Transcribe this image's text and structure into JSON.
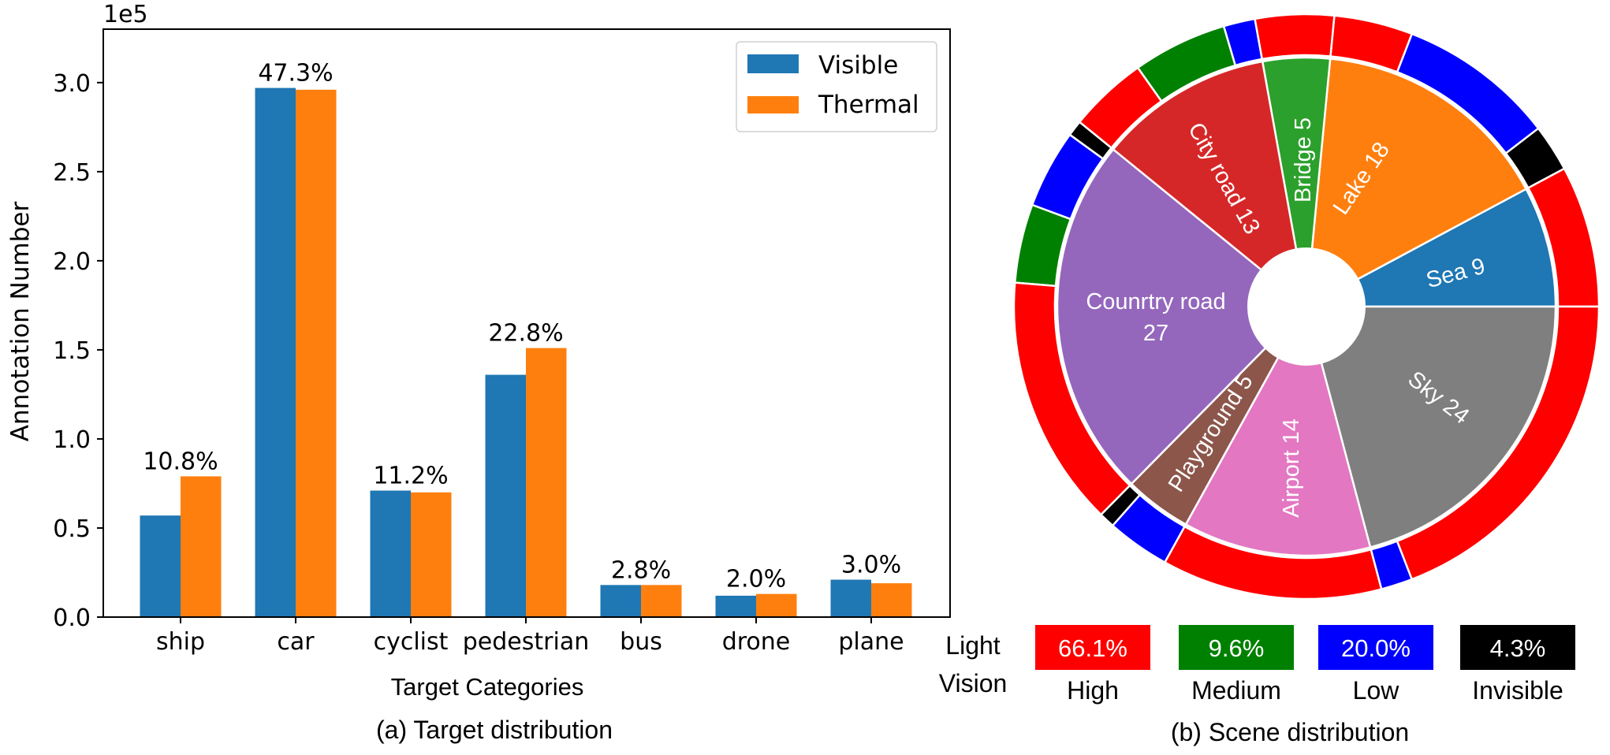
{
  "chart_data": [
    {
      "type": "bar",
      "title": "",
      "caption": "(a) Target distribution",
      "xlabel": "Target Categories",
      "ylabel": "Annotation Number",
      "y_scale_label": "1e5",
      "ylim": [
        0,
        3.3
      ],
      "yticks": [
        0.0,
        0.5,
        1.0,
        1.5,
        2.0,
        2.5,
        3.0
      ],
      "ytick_labels": [
        "0.0",
        "0.5",
        "1.0",
        "1.5",
        "2.0",
        "2.5",
        "3.0"
      ],
      "categories": [
        "ship",
        "car",
        "cyclist",
        "pedestrian",
        "bus",
        "drone",
        "plane"
      ],
      "series": [
        {
          "name": "Visible",
          "color": "#1f77b4",
          "values": [
            0.57,
            2.97,
            0.71,
            1.36,
            0.18,
            0.12,
            0.21
          ]
        },
        {
          "name": "Thermal",
          "color": "#ff7f0e",
          "values": [
            0.79,
            2.96,
            0.7,
            1.51,
            0.18,
            0.13,
            0.19
          ]
        }
      ],
      "bar_labels": [
        "10.8%",
        "47.3%",
        "11.2%",
        "22.8%",
        "2.8%",
        "2.0%",
        "3.0%"
      ],
      "legend": {
        "placement": "top-right",
        "entries": [
          "Visible",
          "Thermal"
        ]
      },
      "grid": false
    },
    {
      "type": "pie",
      "subtype": "nested-donut",
      "caption": "(b) Scene distribution",
      "start_angle_deg": 0,
      "direction": "counterclockwise",
      "inner": [
        {
          "label": "Sea 9",
          "value": 9,
          "color": "#1f77b4"
        },
        {
          "label": "Lake 18",
          "value": 18,
          "color": "#ff7f0e"
        },
        {
          "label": "Bridge 5",
          "value": 5,
          "color": "#2ca02c"
        },
        {
          "label": "City road 13",
          "value": 13,
          "color": "#d62728"
        },
        {
          "label": "Counrtry road 27",
          "label_lines": [
            "Counrtry road",
            "27"
          ],
          "value": 27,
          "color": "#9467bd"
        },
        {
          "label": "Playground 5",
          "value": 5,
          "color": "#8c564b"
        },
        {
          "label": "Airport 14",
          "value": 14,
          "color": "#e377c2"
        },
        {
          "label": "Sky 24",
          "value": 24,
          "color": "#7f7f7f"
        }
      ],
      "outer": [
        {
          "scene": "Sea 9",
          "segments": [
            {
              "level": "High",
              "value": 9
            }
          ]
        },
        {
          "scene": "Lake 18",
          "segments": [
            {
              "level": "Invisible",
              "value": 3
            },
            {
              "level": "Low",
              "value": 10
            },
            {
              "level": "High",
              "value": 5
            }
          ]
        },
        {
          "scene": "Bridge 5",
          "segments": [
            {
              "level": "High",
              "value": 5
            }
          ]
        },
        {
          "scene": "City road 13",
          "segments": [
            {
              "level": "Low",
              "value": 2
            },
            {
              "level": "Medium",
              "value": 6
            },
            {
              "level": "High",
              "value": 5
            }
          ]
        },
        {
          "scene": "Counrtry road 27",
          "segments": [
            {
              "level": "Invisible",
              "value": 1
            },
            {
              "level": "Low",
              "value": 5
            },
            {
              "level": "Medium",
              "value": 5
            },
            {
              "level": "High",
              "value": 16
            }
          ]
        },
        {
          "scene": "Playground 5",
          "segments": [
            {
              "level": "Invisible",
              "value": 1
            },
            {
              "level": "Low",
              "value": 4
            }
          ]
        },
        {
          "scene": "Airport 14",
          "segments": [
            {
              "level": "High",
              "value": 14
            }
          ]
        },
        {
          "scene": "Sky 24",
          "segments": [
            {
              "level": "Low",
              "value": 2
            },
            {
              "level": "High",
              "value": 22
            }
          ]
        }
      ],
      "legend": {
        "title_lines": [
          "Light",
          "Vision"
        ],
        "placement": "bottom",
        "entries": [
          {
            "level": "High",
            "percent": "66.1%",
            "color": "#ff0000"
          },
          {
            "level": "Medium",
            "percent": "9.6%",
            "color": "#008000"
          },
          {
            "level": "Low",
            "percent": "20.0%",
            "color": "#0000ff"
          },
          {
            "level": "Invisible",
            "percent": "4.3%",
            "color": "#000000"
          }
        ]
      }
    }
  ]
}
